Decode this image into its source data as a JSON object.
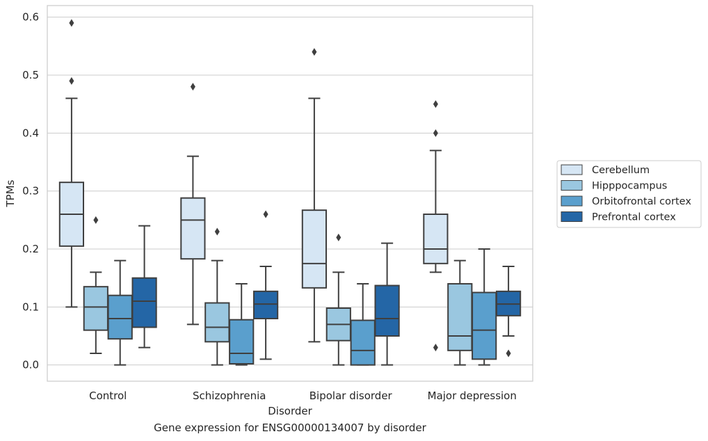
{
  "chart_data": {
    "type": "boxplot",
    "caption": "Gene expression for ENSG00000134007 by disorder",
    "xlabel": "Disorder",
    "ylabel": "TPMs",
    "categories": [
      "Control",
      "Schizophrenia",
      "Bipolar disorder",
      "Major depression"
    ],
    "ylim": [
      -0.028,
      0.62
    ],
    "yticks": [
      0.0,
      0.1,
      0.2,
      0.3,
      0.4,
      0.5,
      0.6
    ],
    "ytick_labels": [
      "0.0",
      "0.1",
      "0.2",
      "0.3",
      "0.4",
      "0.5",
      "0.6"
    ],
    "grid": true,
    "legend_position": "right",
    "series": [
      {
        "name": "Cerebellum",
        "color": "#d6e6f4",
        "boxes": [
          {
            "whislo": 0.1,
            "q1": 0.205,
            "med": 0.26,
            "q3": 0.315,
            "whishi": 0.46,
            "fliers": [
              0.59,
              0.49
            ]
          },
          {
            "whislo": 0.07,
            "q1": 0.183,
            "med": 0.25,
            "q3": 0.288,
            "whishi": 0.36,
            "fliers": [
              0.48
            ]
          },
          {
            "whislo": 0.04,
            "q1": 0.133,
            "med": 0.175,
            "q3": 0.267,
            "whishi": 0.46,
            "fliers": [
              0.54
            ]
          },
          {
            "whislo": 0.16,
            "q1": 0.175,
            "med": 0.2,
            "q3": 0.26,
            "whishi": 0.37,
            "fliers": [
              0.45,
              0.4,
              0.03
            ]
          }
        ]
      },
      {
        "name": "Hipppocampus",
        "color": "#9ac7e0",
        "boxes": [
          {
            "whislo": 0.02,
            "q1": 0.06,
            "med": 0.1,
            "q3": 0.135,
            "whishi": 0.16,
            "fliers": [
              0.25
            ]
          },
          {
            "whislo": 0.0,
            "q1": 0.04,
            "med": 0.065,
            "q3": 0.107,
            "whishi": 0.18,
            "fliers": [
              0.23
            ]
          },
          {
            "whislo": 0.0,
            "q1": 0.042,
            "med": 0.07,
            "q3": 0.098,
            "whishi": 0.16,
            "fliers": [
              0.22
            ]
          },
          {
            "whislo": 0.0,
            "q1": 0.025,
            "med": 0.05,
            "q3": 0.14,
            "whishi": 0.18,
            "fliers": []
          }
        ]
      },
      {
        "name": "Orbitofrontal cortex",
        "color": "#5a9fcd",
        "boxes": [
          {
            "whislo": 0.0,
            "q1": 0.045,
            "med": 0.08,
            "q3": 0.12,
            "whishi": 0.18,
            "fliers": []
          },
          {
            "whislo": 0.0,
            "q1": 0.002,
            "med": 0.02,
            "q3": 0.078,
            "whishi": 0.14,
            "fliers": []
          },
          {
            "whislo": 0.0,
            "q1": 0.0,
            "med": 0.025,
            "q3": 0.077,
            "whishi": 0.14,
            "fliers": []
          },
          {
            "whislo": 0.0,
            "q1": 0.01,
            "med": 0.06,
            "q3": 0.125,
            "whishi": 0.2,
            "fliers": []
          }
        ]
      },
      {
        "name": "Prefrontal cortex",
        "color": "#2466a6",
        "boxes": [
          {
            "whislo": 0.03,
            "q1": 0.065,
            "med": 0.11,
            "q3": 0.15,
            "whishi": 0.24,
            "fliers": []
          },
          {
            "whislo": 0.01,
            "q1": 0.08,
            "med": 0.105,
            "q3": 0.127,
            "whishi": 0.17,
            "fliers": [
              0.26
            ]
          },
          {
            "whislo": 0.0,
            "q1": 0.05,
            "med": 0.08,
            "q3": 0.137,
            "whishi": 0.21,
            "fliers": []
          },
          {
            "whislo": 0.05,
            "q1": 0.085,
            "med": 0.105,
            "q3": 0.127,
            "whishi": 0.17,
            "fliers": [
              0.02
            ]
          }
        ]
      }
    ]
  }
}
